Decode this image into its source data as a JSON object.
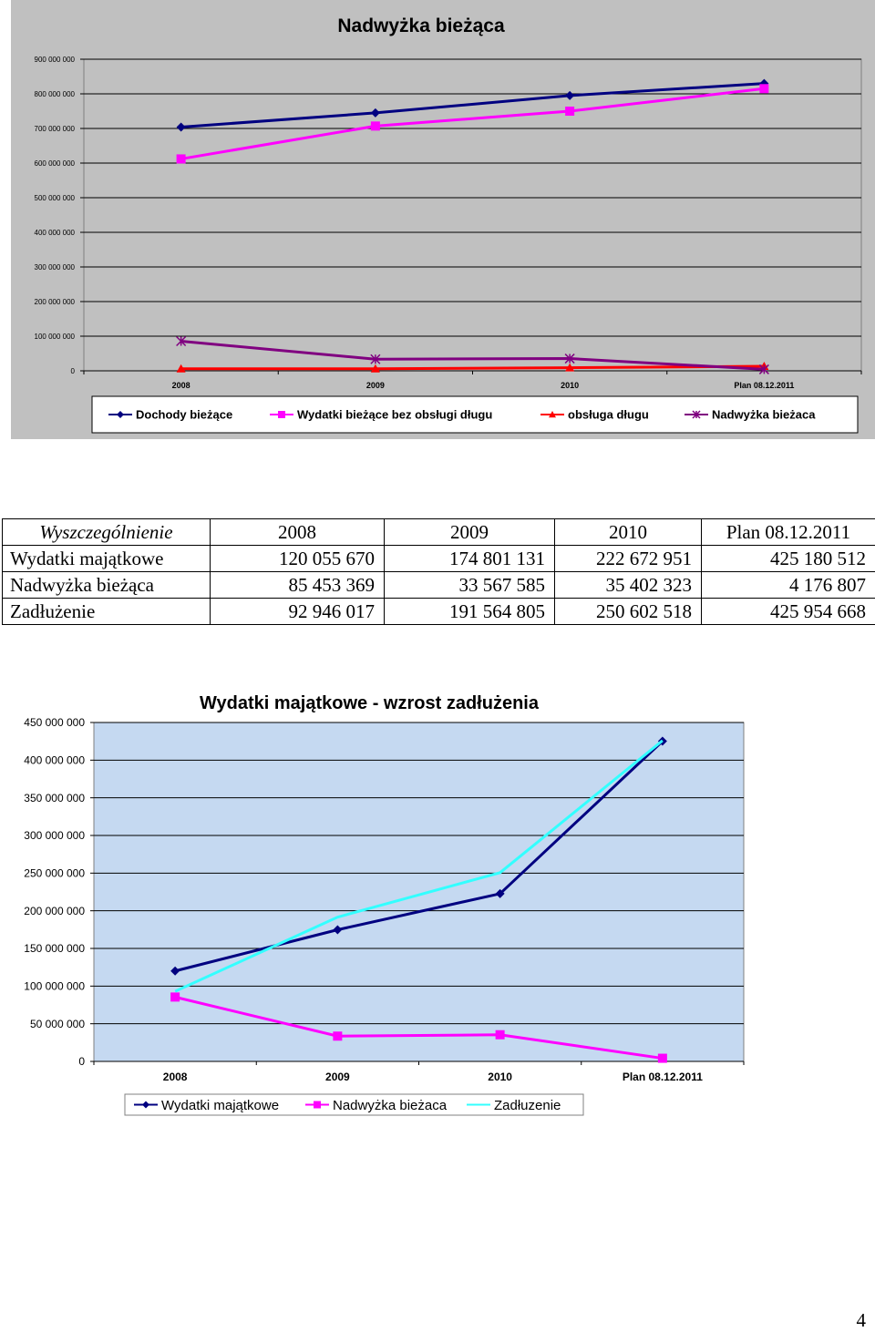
{
  "chart_data": [
    {
      "type": "line",
      "title": "Nadwyżka bieżąca",
      "categories": [
        "2008",
        "2009",
        "2010",
        "Plan 08.12.2011"
      ],
      "series": [
        {
          "name": "Dochody bieżące",
          "color": "#000080",
          "marker": "diamond",
          "values": [
            704000000,
            745000000,
            795000000,
            830000000
          ]
        },
        {
          "name": "Wydatki bieżące bez obsługi długu",
          "color": "#ff00ff",
          "marker": "square",
          "values": [
            612000000,
            707000000,
            750000000,
            815000000
          ]
        },
        {
          "name": "obsługa długu",
          "color": "#ff0000",
          "marker": "triangle",
          "values": [
            6000000,
            6000000,
            9000000,
            13000000
          ]
        },
        {
          "name": "Nadwyżka bieżaca",
          "color": "#800080",
          "marker": "star",
          "values": [
            85453369,
            33567585,
            35402323,
            4176807
          ]
        }
      ],
      "yticks": [
        "0",
        "100 000 000",
        "200 000 000",
        "300 000 000",
        "400 000 000",
        "500 000 000",
        "600 000 000",
        "700 000 000",
        "800 000 000",
        "900 000 000"
      ],
      "ylim": [
        0,
        900000000
      ],
      "grid": true,
      "legend": "bottom",
      "plot_background": "#c0c0c0"
    },
    {
      "type": "line",
      "title": "Wydatki majątkowe - wzrost zadłużenia",
      "categories": [
        "2008",
        "2009",
        "2010",
        "Plan 08.12.2011"
      ],
      "series": [
        {
          "name": "Wydatki majątkowe",
          "color": "#000080",
          "marker": "diamond",
          "values": [
            120055670,
            174801131,
            222672951,
            425180512
          ]
        },
        {
          "name": "Nadwyżka bieżaca",
          "color": "#ff00ff",
          "marker": "square",
          "values": [
            85453369,
            33567585,
            35402323,
            4176807
          ]
        },
        {
          "name": "Zadłuzenie",
          "color": "#33ffff",
          "marker": "none",
          "values": [
            92946017,
            191564805,
            250602518,
            425954668
          ]
        }
      ],
      "yticks": [
        "0",
        "50 000 000",
        "100 000 000",
        "150 000 000",
        "200 000 000",
        "250 000 000",
        "300 000 000",
        "350 000 000",
        "400 000 000",
        "450 000 000"
      ],
      "ylim": [
        0,
        450000000
      ],
      "grid": true,
      "legend": "bottom",
      "plot_background": "#c5d9f1"
    }
  ],
  "table": {
    "header": [
      "Wyszczególnienie",
      "2008",
      "2009",
      "2010",
      "Plan 08.12.2011"
    ],
    "rows": [
      [
        "Wydatki majątkowe",
        "120 055 670",
        "174 801 131",
        "222 672 951",
        "425 180 512"
      ],
      [
        "Nadwyżka bieżąca",
        "85 453 369",
        "33 567 585",
        "35 402 323",
        "4 176 807"
      ],
      [
        "Zadłużenie",
        "92 946 017",
        "191 564 805",
        "250 602 518",
        "425 954 668"
      ]
    ]
  },
  "page_number": "4"
}
